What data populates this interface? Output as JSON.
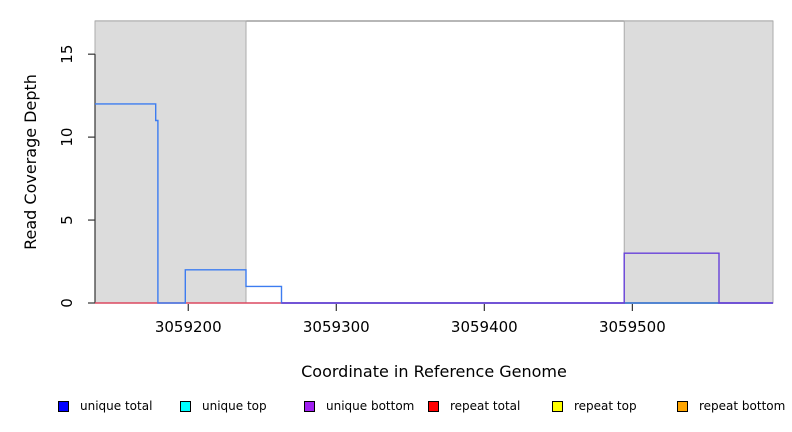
{
  "chart_data": {
    "type": "line",
    "subtype": "step-coverage",
    "title": "",
    "xlabel": "Coordinate in Reference Genome",
    "ylabel": "Read Coverage Depth",
    "xlim": [
      3059137,
      3059595
    ],
    "ylim": [
      0,
      17
    ],
    "x_ticks": [
      3059200,
      3059300,
      3059400,
      3059500
    ],
    "y_ticks": [
      0,
      5,
      10,
      15
    ],
    "grid": false,
    "legend_position": "bottom",
    "shaded_regions": [
      {
        "x1": 3059137,
        "x2": 3059239,
        "fill": "#DCDCDC",
        "stroke": "#ABABAB"
      },
      {
        "x1": 3059494.5,
        "x2": 3059595,
        "fill": "#DCDCDC",
        "stroke": "#ABABAB"
      }
    ],
    "series": [
      {
        "name": "repeat total",
        "color": "#DC4860",
        "points": [
          [
            3059137,
            0
          ],
          [
            3059595,
            0
          ]
        ]
      },
      {
        "name": "green segment",
        "color": "#46A846",
        "points": [
          [
            3059494.5,
            0
          ],
          [
            3059558.5,
            0
          ]
        ]
      },
      {
        "name": "unique total",
        "color": "#3D7CF0",
        "points": [
          [
            3059137,
            12
          ],
          [
            3059178,
            12
          ],
          [
            3059178,
            11
          ],
          [
            3059179.5,
            11
          ],
          [
            3059179.5,
            0
          ],
          [
            3059198,
            0
          ],
          [
            3059198,
            2
          ],
          [
            3059239,
            2
          ],
          [
            3059239,
            1
          ],
          [
            3059263,
            1
          ],
          [
            3059263,
            0
          ],
          [
            3059595,
            0
          ]
        ]
      },
      {
        "name": "unique bottom",
        "color": "#6741D9",
        "points": [
          [
            3059263,
            0
          ],
          [
            3059494.5,
            0
          ],
          [
            3059494.5,
            3
          ],
          [
            3059558.5,
            3
          ],
          [
            3059558.5,
            0
          ],
          [
            3059595,
            0
          ]
        ]
      }
    ],
    "legend": [
      {
        "label": "unique total",
        "color": "#0000FF"
      },
      {
        "label": "unique top",
        "color": "#00FFFF"
      },
      {
        "label": "unique bottom",
        "color": "#A020F0"
      },
      {
        "label": "repeat total",
        "color": "#FF0000"
      },
      {
        "label": "repeat top",
        "color": "#FFFF00"
      },
      {
        "label": "repeat bottom",
        "color": "#FFA500"
      }
    ],
    "colors": {
      "box_top_line": "#8C8C8C",
      "axis": "#333333",
      "background": "#FFFFFF"
    }
  }
}
